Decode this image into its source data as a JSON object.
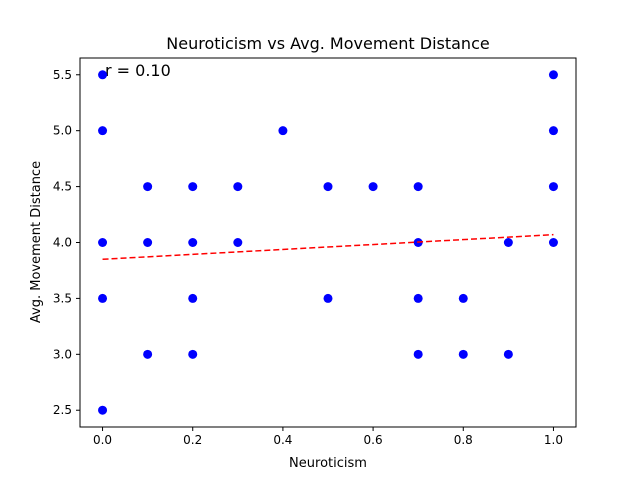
{
  "chart_data": {
    "type": "scatter",
    "title": "Neuroticism vs Avg. Movement Distance",
    "xlabel": "Neuroticism",
    "ylabel": "Avg. Movement Distance",
    "xlim": [
      -0.05,
      1.05
    ],
    "ylim": [
      2.35,
      5.65
    ],
    "xticks": [
      0.0,
      0.2,
      0.4,
      0.6,
      0.8,
      1.0
    ],
    "xtick_labels": [
      "0.0",
      "0.2",
      "0.4",
      "0.6",
      "0.8",
      "1.0"
    ],
    "yticks": [
      2.5,
      3.0,
      3.5,
      4.0,
      4.5,
      5.0,
      5.5
    ],
    "ytick_labels": [
      "2.5",
      "3.0",
      "3.5",
      "4.0",
      "4.5",
      "5.0",
      "5.5"
    ],
    "grid": false,
    "annotation": "r = 0.10",
    "point_color": "#0000ff",
    "trend_color": "#ff0000",
    "points": [
      [
        0.0,
        5.5
      ],
      [
        0.0,
        5.0
      ],
      [
        0.0,
        4.0
      ],
      [
        0.0,
        3.5
      ],
      [
        0.0,
        2.5
      ],
      [
        0.1,
        4.5
      ],
      [
        0.1,
        4.0
      ],
      [
        0.1,
        3.0
      ],
      [
        0.2,
        4.5
      ],
      [
        0.2,
        4.0
      ],
      [
        0.2,
        3.5
      ],
      [
        0.2,
        3.0
      ],
      [
        0.3,
        4.5
      ],
      [
        0.3,
        4.0
      ],
      [
        0.4,
        5.0
      ],
      [
        0.5,
        4.5
      ],
      [
        0.5,
        3.5
      ],
      [
        0.6,
        4.5
      ],
      [
        0.7,
        4.5
      ],
      [
        0.7,
        4.0
      ],
      [
        0.7,
        3.5
      ],
      [
        0.7,
        3.0
      ],
      [
        0.8,
        3.5
      ],
      [
        0.8,
        3.0
      ],
      [
        0.9,
        4.0
      ],
      [
        0.9,
        3.0
      ],
      [
        1.0,
        5.5
      ],
      [
        1.0,
        5.0
      ],
      [
        1.0,
        4.5
      ],
      [
        1.0,
        4.0
      ]
    ],
    "trend_line": {
      "x": [
        0.0,
        1.0
      ],
      "y": [
        3.85,
        4.07
      ]
    }
  }
}
